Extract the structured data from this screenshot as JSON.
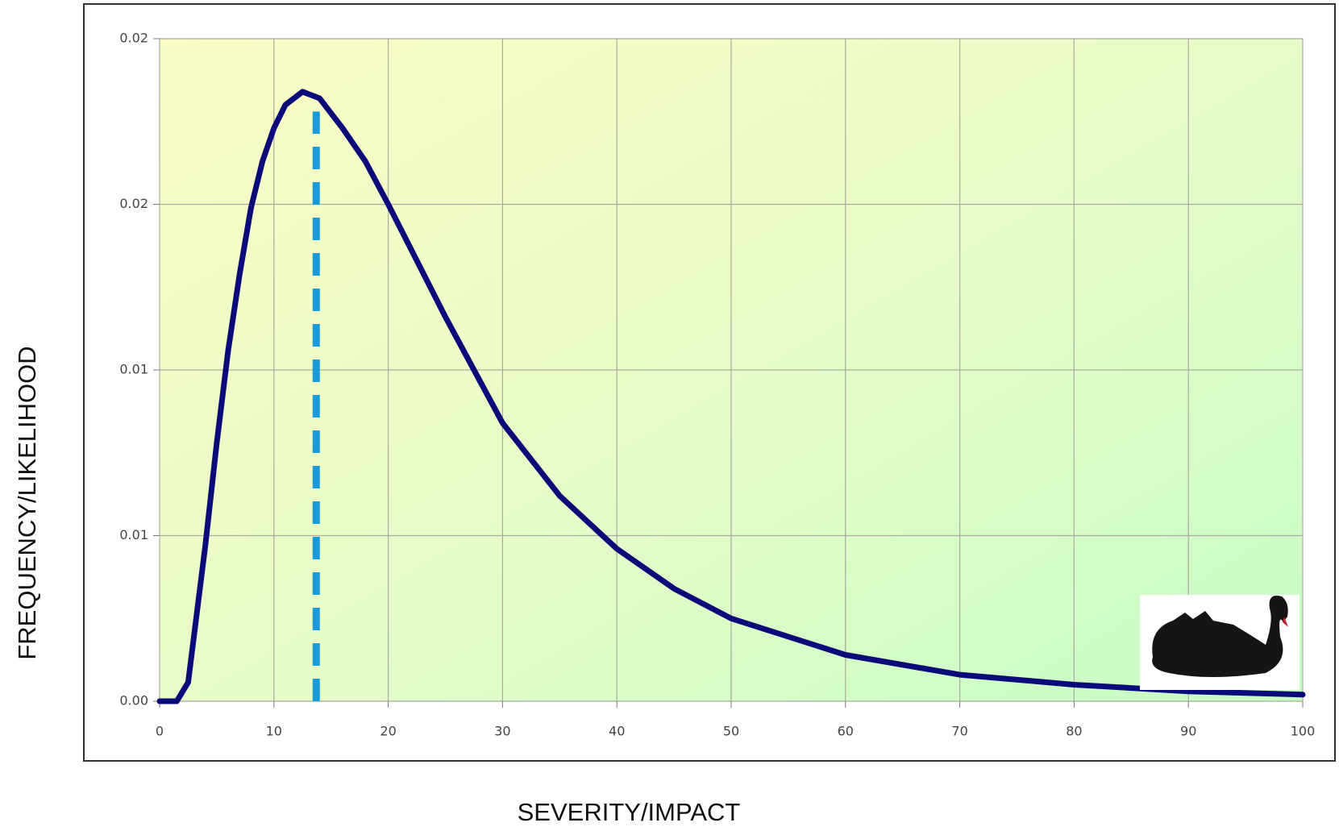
{
  "chart_data": {
    "type": "line",
    "x_label": "SEVERITY/IMPACT",
    "y_label": "FREQUENCY/LIKELIHOOD",
    "x": [
      0,
      1.5,
      2.5,
      4,
      5,
      6,
      7,
      8,
      9,
      10,
      11,
      12.5,
      14,
      16,
      18,
      20,
      25,
      30,
      35,
      40,
      45,
      50,
      60,
      70,
      80,
      90,
      100
    ],
    "values": [
      0,
      0,
      0.00057,
      0.0047,
      0.0078,
      0.0106,
      0.0129,
      0.0149,
      0.0163,
      0.0173,
      0.018,
      0.0184,
      0.0182,
      0.0173,
      0.0163,
      0.015,
      0.0116,
      0.0084,
      0.0062,
      0.0046,
      0.0034,
      0.0025,
      0.0014,
      0.0008,
      0.0005,
      0.0003,
      0.0002
    ],
    "color": "#0a0a78",
    "reference_line": {
      "x": 13.7,
      "y": 0.0178,
      "color": "#1a9ad6"
    },
    "xlim": [
      0,
      100
    ],
    "xticks": [
      0,
      10,
      20,
      30,
      40,
      50,
      60,
      70,
      80,
      90,
      100
    ],
    "ylim": [
      0,
      0.02
    ],
    "yticks": [
      {
        "value": 0,
        "label": "0.00"
      },
      {
        "value": 0.005,
        "label": "0.01"
      },
      {
        "value": 0.01,
        "label": "0.01"
      },
      {
        "value": 0.015,
        "label": "0.02"
      },
      {
        "value": 0.02,
        "label": "0.02"
      }
    ],
    "grid": true
  }
}
